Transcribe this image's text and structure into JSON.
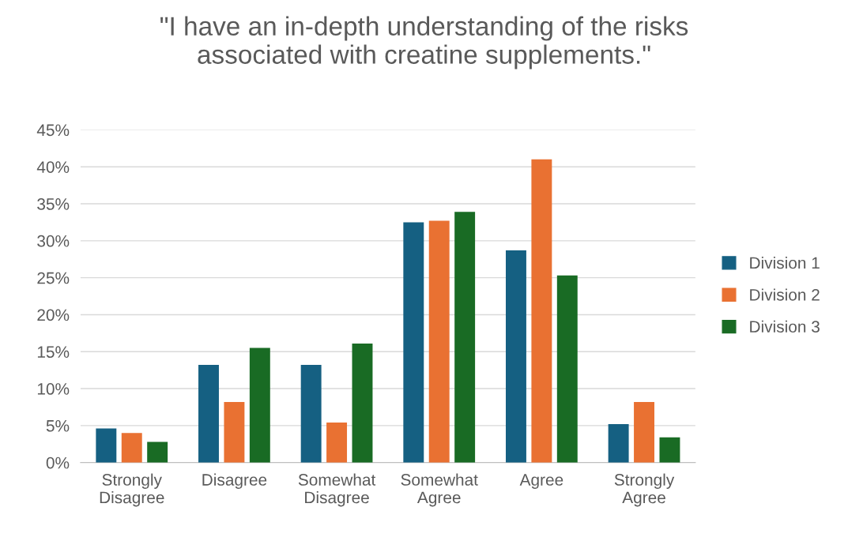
{
  "chart_data": {
    "type": "bar",
    "title": "\"I have an in-depth understanding of the risks\nassociated with creatine supplements.\"",
    "categories": [
      "Strongly\nDisagree",
      "Disagree",
      "Somewhat\nDisagree",
      "Somewhat\nAgree",
      "Agree",
      "Strongly\nAgree"
    ],
    "series": [
      {
        "name": "Division 1",
        "color": "#156082",
        "values": [
          4.6,
          13.2,
          13.2,
          32.5,
          28.7,
          5.2
        ]
      },
      {
        "name": "Division 2",
        "color": "#e97132",
        "values": [
          4.0,
          8.2,
          5.4,
          32.7,
          41.0,
          8.2
        ]
      },
      {
        "name": "Division 3",
        "color": "#196b24",
        "values": [
          2.8,
          15.5,
          16.1,
          33.9,
          25.3,
          3.4
        ]
      }
    ],
    "ylim": [
      0,
      45
    ],
    "yticks": [
      {
        "value": 0,
        "label": "0%"
      },
      {
        "value": 5,
        "label": "5%"
      },
      {
        "value": 10,
        "label": "10%"
      },
      {
        "value": 15,
        "label": "15%"
      },
      {
        "value": 20,
        "label": "20%"
      },
      {
        "value": 25,
        "label": "25%"
      },
      {
        "value": 30,
        "label": "30%"
      },
      {
        "value": 35,
        "label": "35%"
      },
      {
        "value": 40,
        "label": "40%"
      },
      {
        "value": 45,
        "label": "45%"
      }
    ],
    "grid": "y",
    "legend": "right"
  }
}
